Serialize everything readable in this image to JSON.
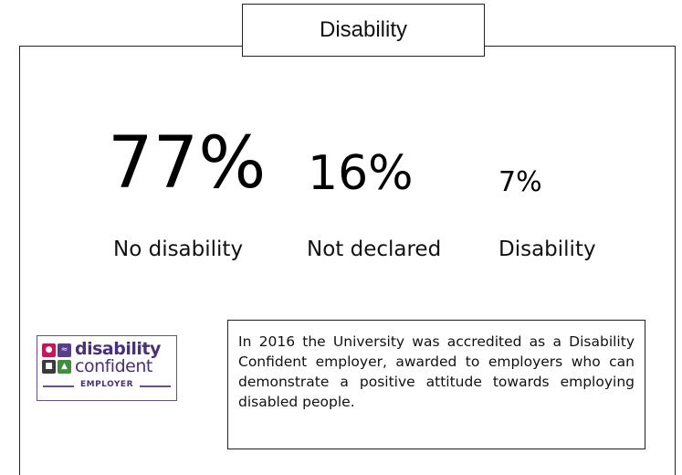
{
  "title": "Disability",
  "stats": [
    {
      "value": "77%",
      "label": "No disability"
    },
    {
      "value": "16%",
      "label": "Not declared"
    },
    {
      "value": "7%",
      "label": "Disability"
    }
  ],
  "logo": {
    "word1": "disability",
    "word2": "confident",
    "word3": "EMPLOYER"
  },
  "info": "In 2016 the University was accredited as a Disability Confident employer, awarded to employers who can demonstrate a positive attitude towards employing disabled people.",
  "colors": {
    "logo_purple": "#4a2f7a",
    "logo_pink": "#c2185b",
    "logo_green": "#3f8f3a"
  }
}
